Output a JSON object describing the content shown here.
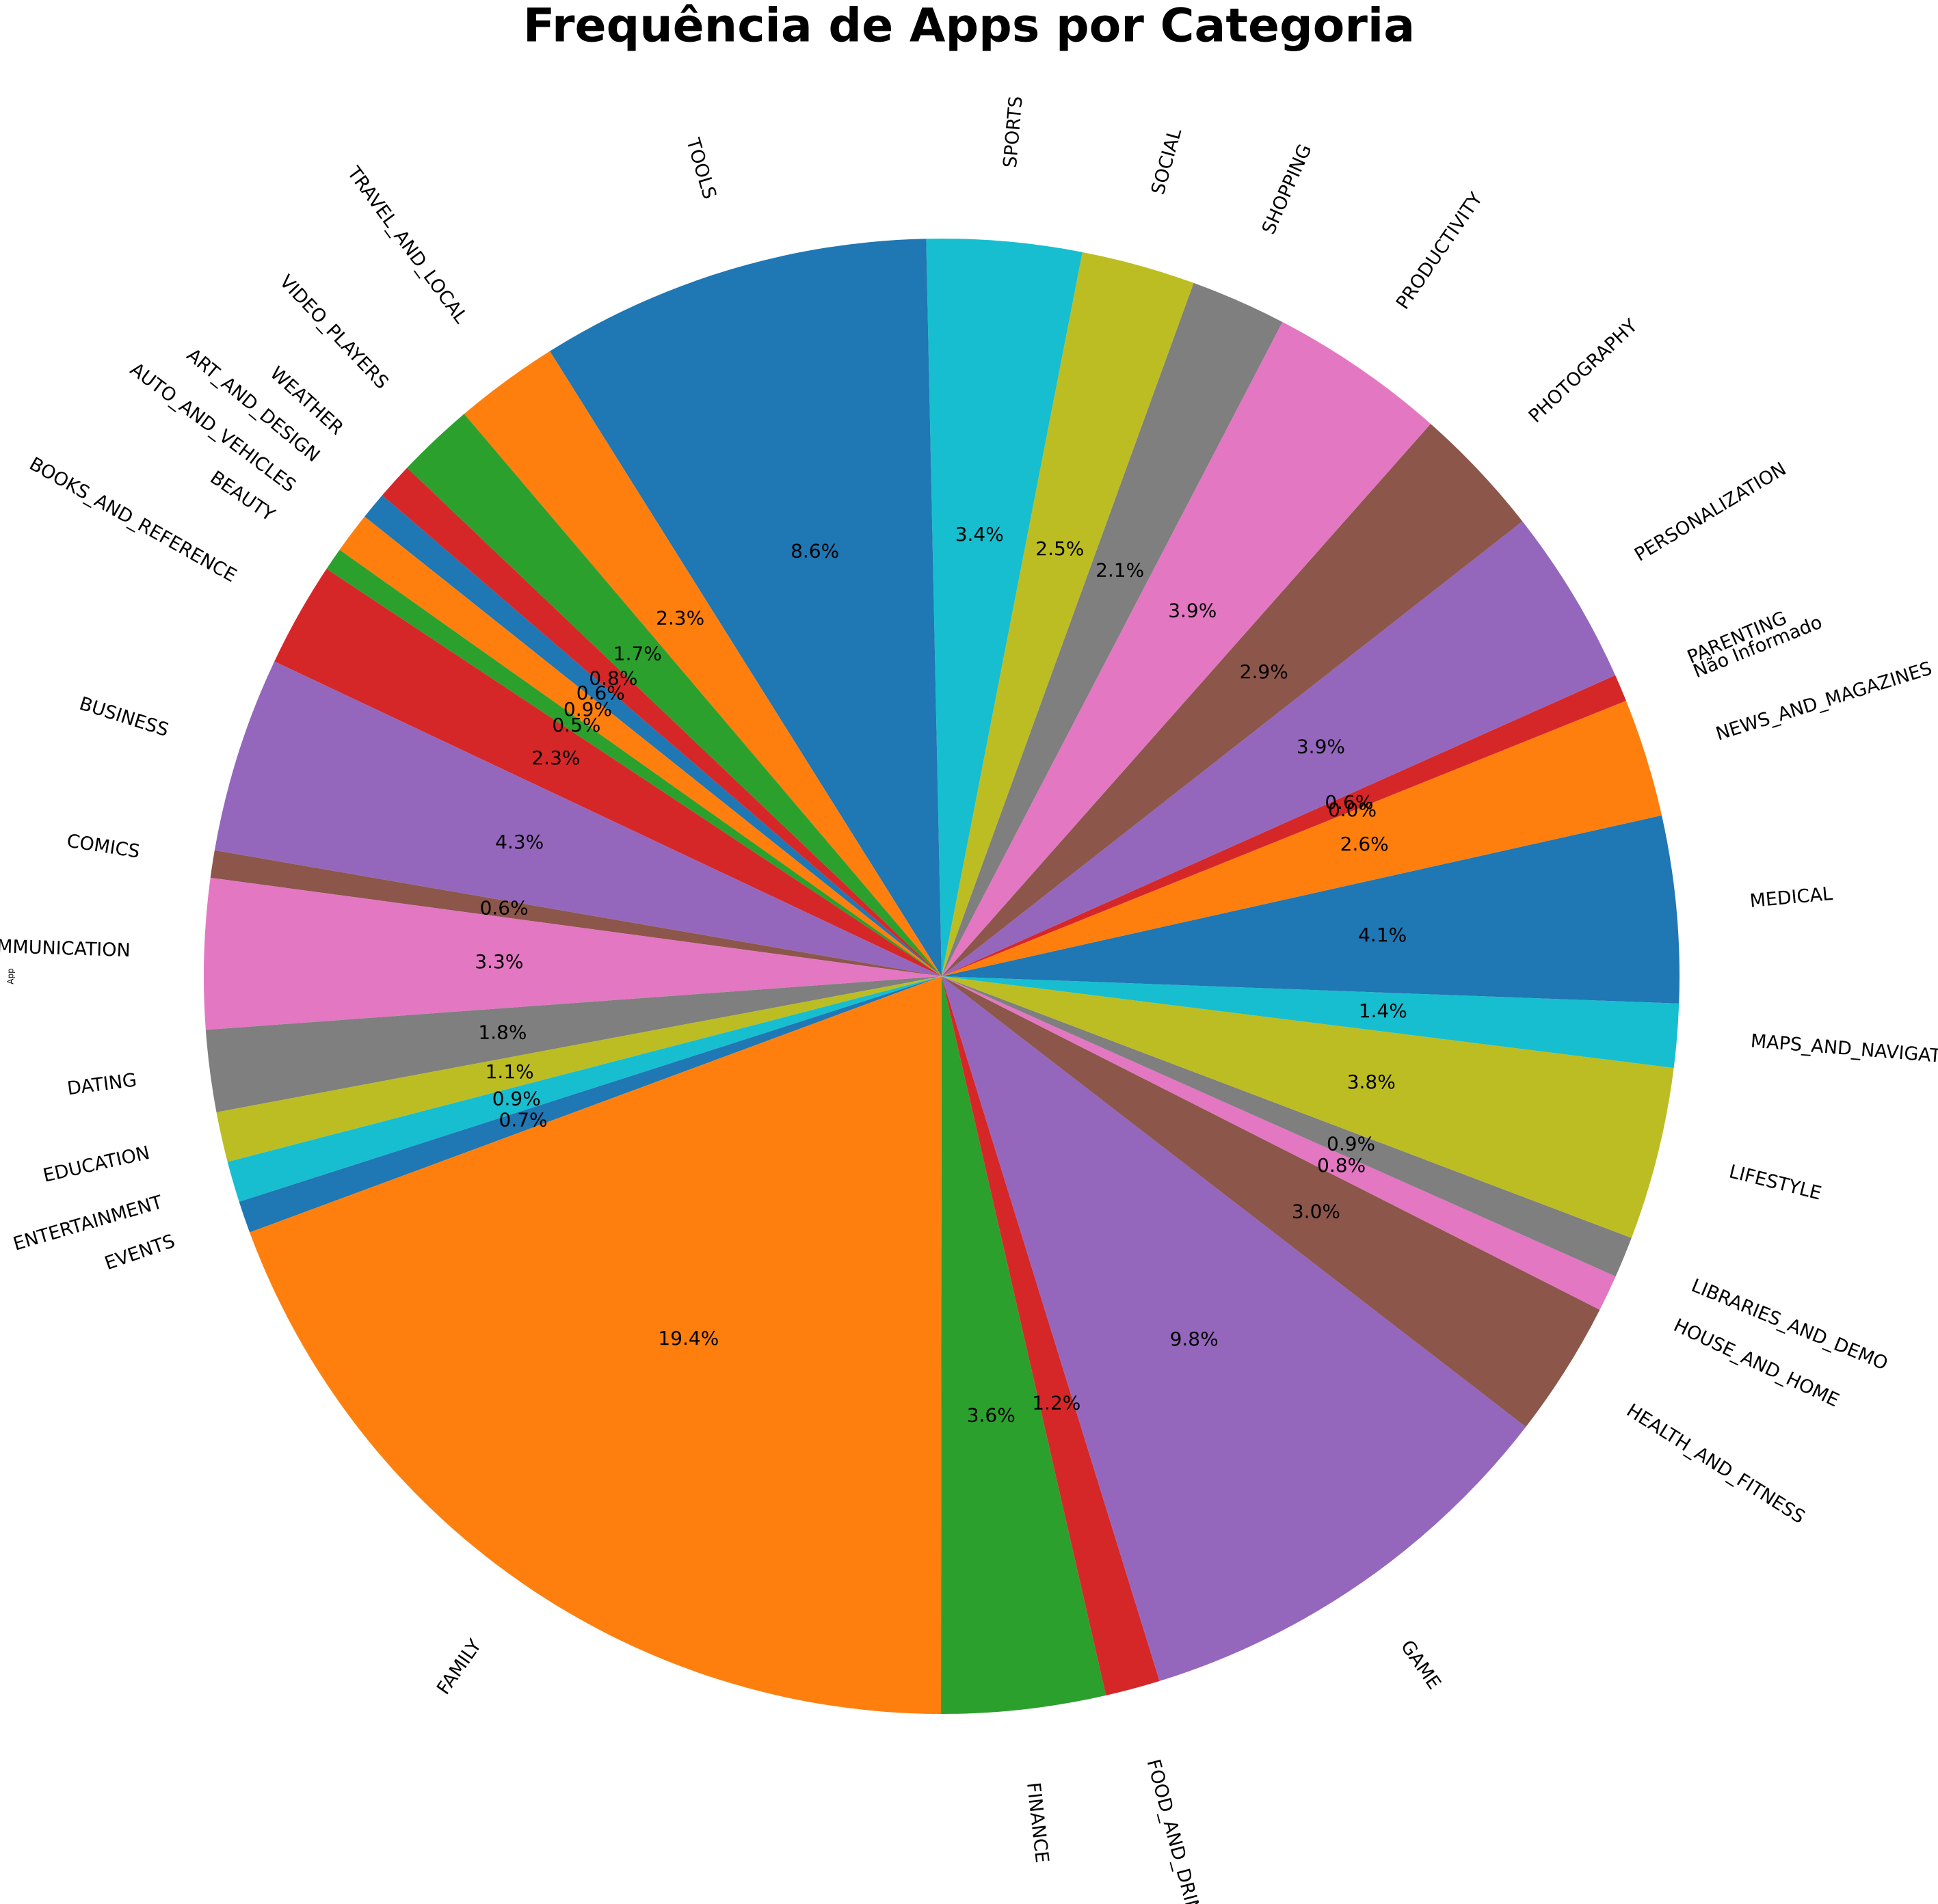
{
  "chart_data": {
    "type": "pie",
    "title": "Frequência de Apps por Categoria",
    "ylabel": "App",
    "categories": [
      "ART_AND_DESIGN",
      "AUTO_AND_VEHICLES",
      "BEAUTY",
      "BOOKS_AND_REFERENCE",
      "BUSINESS",
      "COMICS",
      "COMMUNICATION",
      "DATING",
      "EDUCATION",
      "ENTERTAINMENT",
      "EVENTS",
      "FAMILY",
      "FINANCE",
      "FOOD_AND_DRINK",
      "GAME",
      "HEALTH_AND_FITNESS",
      "HOUSE_AND_HOME",
      "LIBRARIES_AND_DEMO",
      "LIFESTYLE",
      "MAPS_AND_NAVIGATION",
      "MEDICAL",
      "NEWS_AND_MAGAZINES",
      "Não Informado",
      "PARENTING",
      "PERSONALIZATION",
      "PHOTOGRAPHY",
      "PRODUCTIVITY",
      "SHOPPING",
      "SOCIAL",
      "SPORTS",
      "TOOLS",
      "TRAVEL_AND_LOCAL",
      "VIDEO_PLAYERS",
      "WEATHER"
    ],
    "values": [
      0.6,
      0.9,
      0.5,
      2.3,
      4.3,
      0.6,
      3.3,
      1.8,
      1.1,
      0.9,
      0.7,
      19.4,
      3.6,
      1.2,
      9.8,
      3.0,
      0.8,
      0.9,
      3.8,
      1.4,
      4.1,
      2.6,
      0.0,
      0.6,
      3.9,
      2.9,
      3.9,
      2.1,
      2.5,
      3.4,
      8.6,
      2.3,
      1.7,
      0.8
    ],
    "value_labels": [
      "0.6%",
      "0.9%",
      "0.5%",
      "2.3%",
      "4.3%",
      "0.6%",
      "3.3%",
      "1.8%",
      "1.1%",
      "0.9%",
      "0.7%",
      "19.4%",
      "3.6%",
      "1.2%",
      "9.8%",
      "3.0%",
      "0.8%",
      "0.9%",
      "3.8%",
      "1.4%",
      "4.1%",
      "2.6%",
      "0.0%",
      "0.6%",
      "3.9%",
      "2.9%",
      "3.9%",
      "2.1%",
      "2.5%",
      "3.4%",
      "8.6%",
      "2.3%",
      "1.7%",
      "0.8%"
    ],
    "colors": [
      "#1f77b4",
      "#ff7f0e",
      "#2ca02c",
      "#d62728",
      "#9467bd",
      "#8c564b",
      "#e377c2",
      "#7f7f7f",
      "#bcbd22",
      "#17becf"
    ]
  }
}
